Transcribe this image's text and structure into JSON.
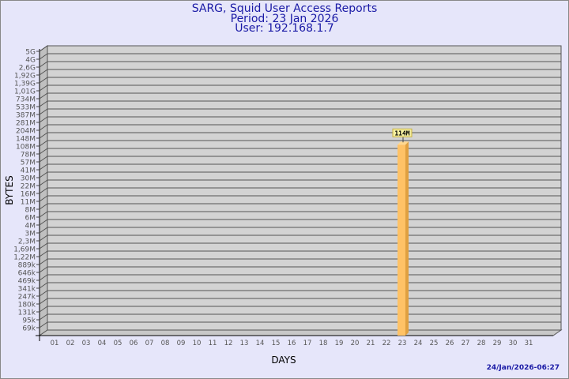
{
  "chart_data": {
    "type": "bar",
    "title": "SARG, Squid User Access Reports",
    "subtitle": [
      "Period: 23 Jan 2026",
      "User: 192.168.1.7"
    ],
    "xlabel": "DAYS",
    "ylabel": "BYTES",
    "y_scale": "log",
    "y_ticks": [
      "5G",
      "4G",
      "2,6G",
      "1,92G",
      "1,39G",
      "1,01G",
      "734M",
      "533M",
      "387M",
      "281M",
      "204M",
      "148M",
      "108M",
      "78M",
      "57M",
      "41M",
      "30M",
      "22M",
      "16M",
      "11M",
      "8M",
      "6M",
      "4M",
      "3M",
      "2,3M",
      "1,69M",
      "1,22M",
      "889k",
      "646k",
      "469k",
      "341k",
      "247k",
      "180k",
      "131k",
      "95k",
      "69k"
    ],
    "categories": [
      "01",
      "02",
      "03",
      "04",
      "05",
      "06",
      "07",
      "08",
      "09",
      "10",
      "11",
      "12",
      "13",
      "14",
      "15",
      "16",
      "17",
      "18",
      "19",
      "20",
      "21",
      "22",
      "23",
      "24",
      "25",
      "26",
      "27",
      "28",
      "29",
      "30",
      "31"
    ],
    "series": [
      {
        "values": [
          null,
          null,
          null,
          null,
          null,
          null,
          null,
          null,
          null,
          null,
          null,
          null,
          null,
          null,
          null,
          null,
          null,
          null,
          null,
          null,
          null,
          null,
          114000000,
          null,
          null,
          null,
          null,
          null,
          null,
          null,
          null
        ]
      }
    ],
    "data_labels": {
      "23": "114M"
    },
    "grid": true,
    "colors": {
      "background": "#e6e6fa",
      "plot": "#d3d3d3",
      "bar": "#ffc266",
      "bar_side": "#e0a040",
      "title": "#1a1aa6"
    }
  },
  "footer": {
    "timestamp": "24/Jan/2026-06:27"
  }
}
